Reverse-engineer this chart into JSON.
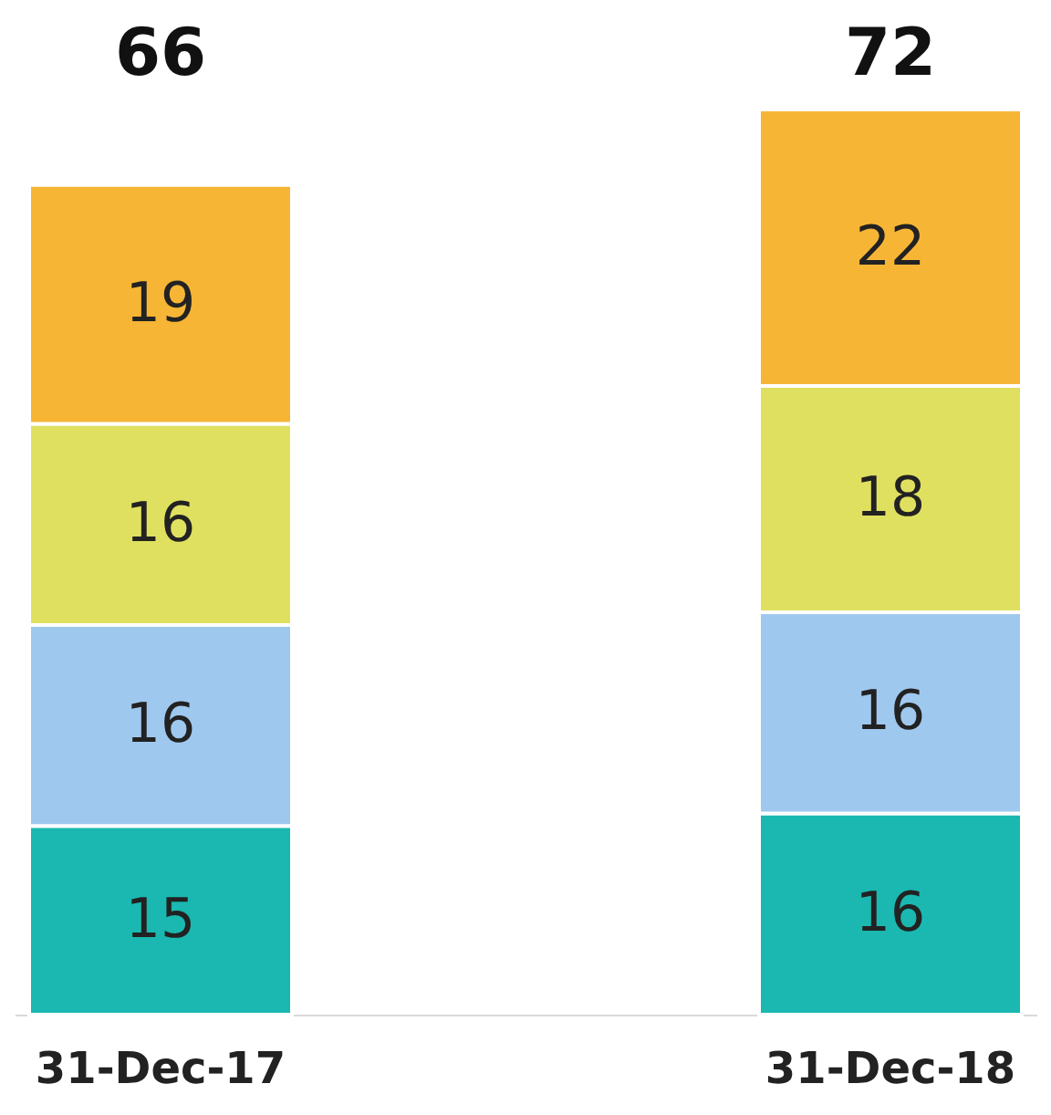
{
  "chart_data": {
    "type": "bar",
    "stacked": true,
    "data_labels": true,
    "grid": false,
    "categories": [
      "31-Dec-17",
      "31-Dec-18"
    ],
    "series": [
      {
        "color": "#1ab8b0",
        "values": [
          15,
          16
        ]
      },
      {
        "color": "#9fc8ee",
        "values": [
          16,
          16
        ]
      },
      {
        "color": "#e0e060",
        "values": [
          16,
          18
        ]
      },
      {
        "color": "#f7b536",
        "values": [
          19,
          22
        ]
      }
    ],
    "totals": [
      "66",
      "72"
    ]
  }
}
